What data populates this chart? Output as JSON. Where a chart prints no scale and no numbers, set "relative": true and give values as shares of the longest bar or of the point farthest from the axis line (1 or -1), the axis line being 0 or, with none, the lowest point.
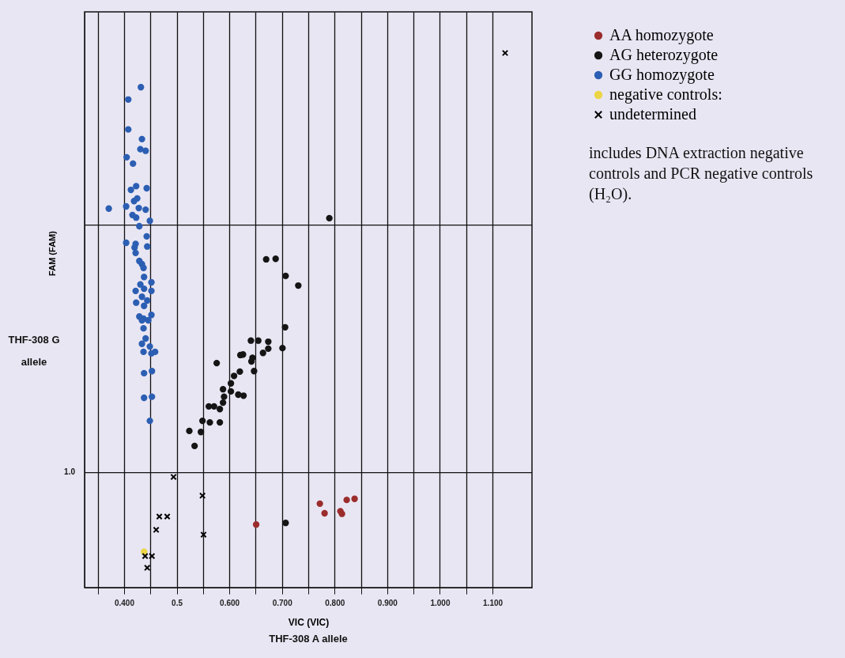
{
  "chart_data": {
    "type": "scatter",
    "xlabel": "VIC (VIC)",
    "ylabel": "FAM (FAM)",
    "relative": true,
    "marker": "circle",
    "grid": "x",
    "legend": "right",
    "xlim": [
      0.325,
      1.175
    ],
    "xticks": [
      {
        "value": 0.35,
        "label": null
      },
      {
        "value": 0.4,
        "label": "0.400"
      },
      {
        "value": 0.45,
        "label": null
      },
      {
        "value": 0.5,
        "label": "0.5"
      },
      {
        "value": 0.55,
        "label": null
      },
      {
        "value": 0.6,
        "label": "0.600"
      },
      {
        "value": 0.65,
        "label": null
      },
      {
        "value": 0.7,
        "label": "0.700"
      },
      {
        "value": 0.75,
        "label": null
      },
      {
        "value": 0.8,
        "label": "0.800"
      },
      {
        "value": 0.85,
        "label": null
      },
      {
        "value": 0.9,
        "label": "0.900"
      },
      {
        "value": 0.95,
        "label": null
      },
      {
        "value": 1.0,
        "label": "1.000"
      },
      {
        "value": 1.05,
        "label": null
      },
      {
        "value": 1.1,
        "label": "1.100"
      }
    ],
    "ref_lines": [
      {
        "axis": "y",
        "value": 0.215,
        "color": "#111111"
      },
      {
        "axis": "y",
        "value": 0.678,
        "color": "#111111"
      }
    ],
    "annotations": [
      "THF-308   A allele",
      "THF-308 G allele",
      "includes DNA extraction negative controls and PCR negative controls (H₂O).",
      "1.0"
    ],
    "series": [
      {
        "name": "AA homozygote",
        "color": "#9b2d2d",
        "x": [
          0.772,
          0.781,
          0.811,
          0.814,
          0.823,
          0.838,
          0.651
        ],
        "values": [
          0.157,
          0.139,
          0.143,
          0.138,
          0.164,
          0.166,
          0.118
        ]
      },
      {
        "name": "AG heterozygote",
        "color": "#151515",
        "x": [
          0.706,
          0.641,
          0.655,
          0.674,
          0.701,
          0.674,
          0.664,
          0.626,
          0.621,
          0.644,
          0.642,
          0.576,
          0.647,
          0.62,
          0.609,
          0.603,
          0.603,
          0.617,
          0.627,
          0.588,
          0.59,
          0.588,
          0.582,
          0.571,
          0.561,
          0.549,
          0.563,
          0.582,
          0.524,
          0.546,
          0.534,
          0.79,
          0.731,
          0.67,
          0.688,
          0.707,
          0.707
        ],
        "values": [
          0.487,
          0.462,
          0.462,
          0.46,
          0.448,
          0.447,
          0.439,
          0.436,
          0.435,
          0.43,
          0.423,
          0.42,
          0.405,
          0.404,
          0.396,
          0.382,
          0.367,
          0.361,
          0.359,
          0.371,
          0.357,
          0.346,
          0.334,
          0.339,
          0.339,
          0.312,
          0.309,
          0.309,
          0.293,
          0.291,
          0.265,
          0.691,
          0.565,
          0.614,
          0.615,
          0.583,
          0.121
        ]
      },
      {
        "name": "GG homozygote",
        "color": "#2c5fb3",
        "x": [
          0.432,
          0.408,
          0.408,
          0.434,
          0.431,
          0.441,
          0.405,
          0.417,
          0.413,
          0.423,
          0.443,
          0.419,
          0.425,
          0.371,
          0.404,
          0.428,
          0.441,
          0.416,
          0.423,
          0.449,
          0.429,
          0.404,
          0.422,
          0.42,
          0.443,
          0.444,
          0.422,
          0.429,
          0.434,
          0.437,
          0.438,
          0.452,
          0.431,
          0.438,
          0.422,
          0.452,
          0.434,
          0.444,
          0.423,
          0.438,
          0.452,
          0.429,
          0.434,
          0.446,
          0.437,
          0.437,
          0.441,
          0.434,
          0.449,
          0.459,
          0.437,
          0.452,
          0.438,
          0.453,
          0.438,
          0.453,
          0.449
        ],
        "values": [
          0.936,
          0.913,
          0.857,
          0.839,
          0.82,
          0.817,
          0.805,
          0.793,
          0.744,
          0.751,
          0.747,
          0.723,
          0.728,
          0.709,
          0.713,
          0.71,
          0.707,
          0.697,
          0.692,
          0.686,
          0.676,
          0.645,
          0.643,
          0.636,
          0.657,
          0.638,
          0.626,
          0.611,
          0.605,
          0.598,
          0.581,
          0.571,
          0.567,
          0.559,
          0.555,
          0.555,
          0.544,
          0.537,
          0.533,
          0.527,
          0.51,
          0.507,
          0.5,
          0.5,
          0.503,
          0.485,
          0.466,
          0.456,
          0.451,
          0.441,
          0.441,
          0.438,
          0.401,
          0.405,
          0.355,
          0.357,
          0.312
        ]
      },
      {
        "name": "negative controls:",
        "color": "#ecd545",
        "x": [
          0.438
        ],
        "values": [
          0.067
        ]
      },
      {
        "name": "undetermined",
        "color": "#000000",
        "marker": "cross",
        "x": [
          0.494,
          0.549,
          0.467,
          0.482,
          0.461,
          0.551,
          0.44,
          0.453,
          0.444,
          1.124
        ],
        "values": [
          0.207,
          0.172,
          0.133,
          0.133,
          0.108,
          0.099,
          0.059,
          0.059,
          0.037,
          1.0
        ]
      }
    ]
  }
}
